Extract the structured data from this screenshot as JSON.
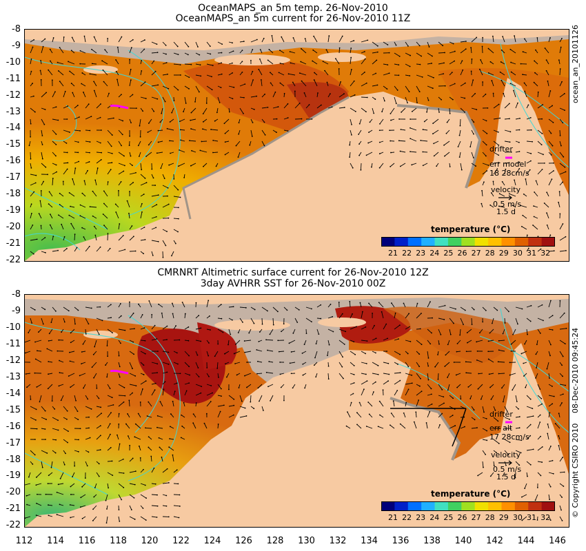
{
  "top_panel": {
    "title_line1": "OceanMAPS_an 5m temp. 26-Nov-2010",
    "title_line2": "OceanMAPS_an 5m current for 26-Nov-2010 11Z",
    "legend": {
      "drifter": "drifter",
      "err_line1": "err model",
      "err_line2": "18 28cm/s",
      "velocity": "velocity",
      "speed": "0.5 m/s",
      "days": "1.5 d"
    },
    "side_label": "ocean_an_20101126",
    "colorbar_title": "temperature (°C)"
  },
  "bottom_panel": {
    "title_line1": "CMRNRT Altimetric surface current for 26-Nov-2010 12Z",
    "title_line2": "3day AVHRR SST for 26-Nov-2010 00Z",
    "legend": {
      "drifter": "drifter",
      "err_line1": "err alt",
      "err_line2": "17 28cm/s",
      "velocity": "velocity",
      "speed": "0.5 m/s",
      "days": "1.5 d"
    },
    "side_label": "08-Dec-2010 09:45:24",
    "copyright": "© Copyright CSIRO 2010",
    "colorbar_title": "temperature (°C)"
  },
  "axes": {
    "lat_labels": [
      "-8",
      "-9",
      "-10",
      "-11",
      "-12",
      "-13",
      "-14",
      "-15",
      "-16",
      "-17",
      "-18",
      "-19",
      "-20",
      "-21",
      "-22"
    ],
    "lon_labels": [
      "112",
      "114",
      "116",
      "118",
      "120",
      "122",
      "124",
      "126",
      "128",
      "130",
      "132",
      "134",
      "136",
      "138",
      "140",
      "142",
      "144",
      "146"
    ]
  },
  "colorbar": {
    "labels": [
      "21",
      "22",
      "23",
      "24",
      "25",
      "26",
      "27",
      "28",
      "29",
      "30",
      "31",
      "32"
    ],
    "colors": [
      "#00007a",
      "#0020c8",
      "#0070ff",
      "#20b0ff",
      "#40e0c0",
      "#40d060",
      "#a0e020",
      "#f0e000",
      "#ffc000",
      "#ff9000",
      "#e06000",
      "#c03010",
      "#a01010"
    ]
  },
  "colors": {
    "land": "#f7caa2",
    "sea_warm": "#d8600c",
    "sea_hot": "#a41410",
    "sea_mid": "#f0a000",
    "sea_cool": "#a8d820",
    "no_data": "#c4b2a4",
    "contour": "#40d8d8",
    "drifter": "#ff00ff"
  }
}
